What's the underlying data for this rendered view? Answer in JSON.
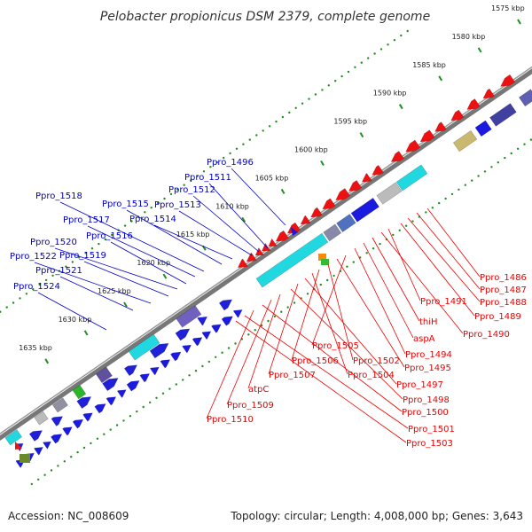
{
  "title": "Pelobacter propionicus DSM 2379, complete genome",
  "footer": {
    "accession": "Accession: NC_008609",
    "topology": "Topology: circular; Length: 4,008,000 bp; Genes: 3,643"
  },
  "colors": {
    "forward_label": "#0000cc",
    "reverse_label": "#ee0000",
    "backbone": "#777777",
    "dots": "#1f8f1f",
    "forward_gene": "#1a1ae0",
    "reverse_gene": "#ee1111",
    "cyan": "#22d8e0",
    "purple": "#7060c0"
  },
  "ruler": [
    {
      "label": "1575 kbp",
      "kbp": 1575
    },
    {
      "label": "1580 kbp",
      "kbp": 1580
    },
    {
      "label": "1585 kbp",
      "kbp": 1585
    },
    {
      "label": "1590 kbp",
      "kbp": 1590
    },
    {
      "label": "1595 kbp",
      "kbp": 1595
    },
    {
      "label": "1600 kbp",
      "kbp": 1600
    },
    {
      "label": "1605 kbp",
      "kbp": 1605
    },
    {
      "label": "1610 kbp",
      "kbp": 1610
    },
    {
      "label": "1615 kbp",
      "kbp": 1615
    },
    {
      "label": "1620 kbp",
      "kbp": 1620
    },
    {
      "label": "1625 kbp",
      "kbp": 1625
    },
    {
      "label": "1630 kbp",
      "kbp": 1630
    },
    {
      "label": "1635 kbp",
      "kbp": 1635
    }
  ],
  "forward_labels": [
    "Ppro_1496",
    "Ppro_1511",
    "Ppro_1512",
    "Ppro_1513",
    "Ppro_1514",
    "Ppro_1515",
    "Ppro_1518",
    "Ppro_1517",
    "Ppro_1516",
    "Ppro_1520",
    "Ppro_1519",
    "Ppro_1522",
    "Ppro_1521",
    "Ppro_1524"
  ],
  "reverse_labels": [
    "Ppro_1486",
    "Ppro_1487",
    "Ppro_1488",
    "Ppro_1489",
    "Ppro_1491",
    "Ppro_1490",
    "thiH",
    "aspA",
    "Ppro_1494",
    "Ppro_1505",
    "Ppro_1495",
    "Ppro_1502",
    "Ppro_1506",
    "Ppro_1504",
    "Ppro_1497",
    "Ppro_1507",
    "Ppro_1498",
    "atpC",
    "Ppro_1509",
    "Ppro_1500",
    "Ppro_1510",
    "Ppro_1501",
    "Ppro_1503"
  ]
}
